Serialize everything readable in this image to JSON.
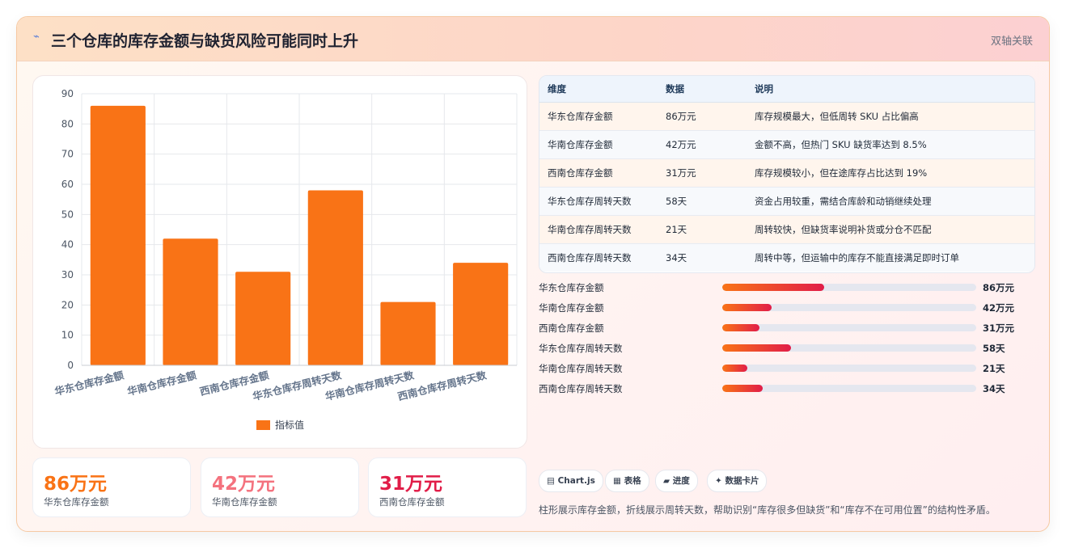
{
  "header": {
    "icon": "trend-icon",
    "title": "三个仓库的库存金额与缺货风险可能同时上升",
    "tag": "双轴关联"
  },
  "chart_data": {
    "type": "bar",
    "categories": [
      "华东仓库存金额",
      "华南仓库存金额",
      "西南仓库存金额",
      "华东仓库存周转天数",
      "华南仓库存周转天数",
      "西南仓库存周转天数"
    ],
    "series": [
      {
        "name": "指标值",
        "values": [
          86,
          42,
          31,
          58,
          21,
          34
        ],
        "color": "#f97316"
      }
    ],
    "yticks": [
      "0",
      "10",
      "20",
      "30",
      "40",
      "50",
      "60",
      "70",
      "80",
      "90"
    ],
    "ylim": [
      0,
      90
    ],
    "grid": true,
    "legend": "bottom"
  },
  "stats": [
    {
      "value": "86万元",
      "label": "华东仓库存金额",
      "color": "#f97316"
    },
    {
      "value": "42万元",
      "label": "华南仓库存金额",
      "color": "#f4727e"
    },
    {
      "value": "31万元",
      "label": "西南仓库存金额",
      "color": "#e11d48"
    }
  ],
  "table": {
    "headers": [
      "维度",
      "数据",
      "说明"
    ],
    "rows": [
      [
        "华东仓库存金额",
        "86万元",
        "库存规模最大，但低周转 SKU 占比偏高"
      ],
      [
        "华南仓库存金额",
        "42万元",
        "金额不高，但热门 SKU 缺货率达到 8.5%"
      ],
      [
        "西南仓库存金额",
        "31万元",
        "库存规模较小，但在途库存占比达到 19%"
      ],
      [
        "华东仓库存周转天数",
        "58天",
        "资金占用较重，需结合库龄和动销继续处理"
      ],
      [
        "华南仓库存周转天数",
        "21天",
        "周转较快，但缺货率说明补货或分仓不匹配"
      ],
      [
        "西南仓库存周转天数",
        "34天",
        "周转中等，但运输中的库存不能直接满足即时订单"
      ]
    ]
  },
  "progress": [
    {
      "label": "华东仓库存金额",
      "value": "86万元",
      "fraction": 0.4
    },
    {
      "label": "华南仓库存金额",
      "value": "42万元",
      "fraction": 0.195
    },
    {
      "label": "西南仓库存金额",
      "value": "31万元",
      "fraction": 0.145
    },
    {
      "label": "华东仓库存周转天数",
      "value": "58天",
      "fraction": 0.27
    },
    {
      "label": "华南仓库存周转天数",
      "value": "21天",
      "fraction": 0.098
    },
    {
      "label": "西南仓库存周转天数",
      "value": "34天",
      "fraction": 0.16
    }
  ],
  "chips": [
    {
      "icon": "▤",
      "label": "Chart.js"
    },
    {
      "icon": "▦",
      "label": "表格"
    },
    {
      "icon": "▰",
      "label": "进度"
    },
    {
      "icon": "✦",
      "label": "数据卡片"
    }
  ],
  "note": "柱形展示库存金额，折线展示周转天数，帮助识别“库存很多但缺货”和“库存不在可用位置”的结构性矛盾。"
}
